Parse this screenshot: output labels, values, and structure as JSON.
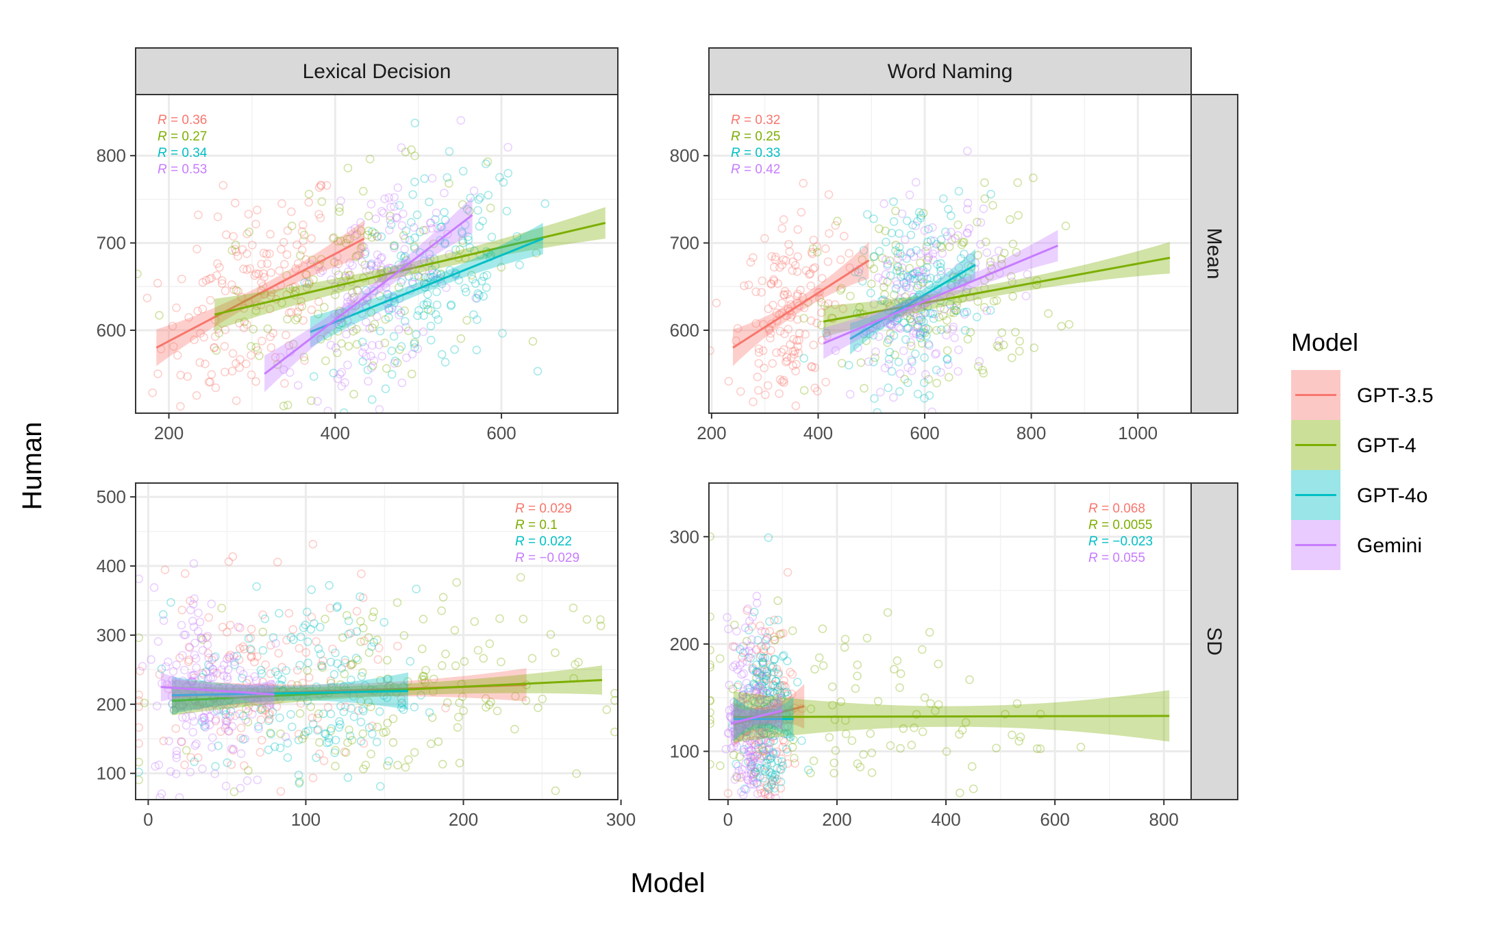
{
  "figure": {
    "xlabel": "Model",
    "ylabel": "Human",
    "legend": {
      "title": "Model",
      "placement": "right",
      "items": [
        {
          "label": "GPT-3.5",
          "color": "#F8766D"
        },
        {
          "label": "GPT-4",
          "color": "#7CAE00"
        },
        {
          "label": "GPT-4o",
          "color": "#00BFC4"
        },
        {
          "label": "Gemini",
          "color": "#C77CFF"
        }
      ]
    }
  },
  "chart_data": [
    {
      "type": "scatter",
      "task": "Lexical Decision",
      "measure": "Mean",
      "xlim": [
        160,
        740
      ],
      "ylim": [
        505,
        870
      ],
      "xticks": [
        "200",
        "400",
        "600"
      ],
      "xtick_values": [
        200,
        400,
        600
      ],
      "yticks": [
        "600",
        "700",
        "800"
      ],
      "ytick_values": [
        600,
        700,
        800
      ],
      "grid": true,
      "fit_lines": [
        {
          "model": "GPT-3.5",
          "x": [
            185,
            435
          ],
          "y": [
            580,
            705
          ],
          "ci": 14
        },
        {
          "model": "GPT-4",
          "x": [
            255,
            725
          ],
          "y": [
            618,
            723
          ],
          "ci": 12
        },
        {
          "model": "GPT-4o",
          "x": [
            370,
            650
          ],
          "y": [
            598,
            705
          ],
          "ci": 12
        },
        {
          "model": "Gemini",
          "x": [
            315,
            565
          ],
          "y": [
            550,
            732
          ],
          "ci": 14
        }
      ],
      "point_clouds": [
        {
          "model": "GPT-3.5",
          "x_center": 300,
          "x_sd": 55,
          "n": 160
        },
        {
          "model": "GPT-4",
          "x_center": 420,
          "x_sd": 80,
          "n": 150
        },
        {
          "model": "GPT-4o",
          "x_center": 520,
          "x_sd": 55,
          "n": 160
        },
        {
          "model": "Gemini",
          "x_center": 450,
          "x_sd": 50,
          "n": 160
        }
      ],
      "annotations": [
        {
          "label": "R",
          "value": " = 0.36",
          "model": "GPT-3.5"
        },
        {
          "label": "R",
          "value": " = 0.27",
          "model": "GPT-4"
        },
        {
          "label": "R",
          "value": " = 0.34",
          "model": "GPT-4o"
        },
        {
          "label": "R",
          "value": " = 0.53",
          "model": "Gemini"
        }
      ],
      "annotation_corner": "top-left"
    },
    {
      "type": "scatter",
      "task": "Word Naming",
      "measure": "Mean",
      "xlim": [
        195,
        1100
      ],
      "ylim": [
        505,
        870
      ],
      "xticks": [
        "200",
        "400",
        "600",
        "800",
        "1000"
      ],
      "xtick_values": [
        200,
        400,
        600,
        800,
        1000
      ],
      "yticks": [
        "600",
        "700",
        "800"
      ],
      "ytick_values": [
        600,
        700,
        800
      ],
      "grid": true,
      "fit_lines": [
        {
          "model": "GPT-3.5",
          "x": [
            240,
            495
          ],
          "y": [
            580,
            680
          ],
          "ci": 14
        },
        {
          "model": "GPT-4",
          "x": [
            410,
            1060
          ],
          "y": [
            610,
            683
          ],
          "ci": 12
        },
        {
          "model": "GPT-4o",
          "x": [
            460,
            695
          ],
          "y": [
            590,
            675
          ],
          "ci": 12
        },
        {
          "model": "Gemini",
          "x": [
            410,
            850
          ],
          "y": [
            585,
            697
          ],
          "ci": 12
        }
      ],
      "point_clouds": [
        {
          "model": "GPT-3.5",
          "x_center": 340,
          "x_sd": 50,
          "n": 160
        },
        {
          "model": "GPT-4",
          "x_center": 620,
          "x_sd": 110,
          "n": 150
        },
        {
          "model": "GPT-4o",
          "x_center": 580,
          "x_sd": 55,
          "n": 160
        },
        {
          "model": "Gemini",
          "x_center": 600,
          "x_sd": 70,
          "n": 150
        }
      ],
      "annotations": [
        {
          "label": "R",
          "value": " = 0.32",
          "model": "GPT-3.5"
        },
        {
          "label": "R",
          "value": " = 0.25",
          "model": "GPT-4"
        },
        {
          "label": "R",
          "value": " = 0.33",
          "model": "GPT-4o"
        },
        {
          "label": "R",
          "value": " = 0.42",
          "model": "Gemini"
        }
      ],
      "annotation_corner": "top-left"
    },
    {
      "type": "scatter",
      "task": "Lexical Decision",
      "measure": "SD",
      "xlim": [
        -8,
        298
      ],
      "ylim": [
        62,
        520
      ],
      "xticks": [
        "0",
        "100",
        "200",
        "300"
      ],
      "xtick_values": [
        0,
        100,
        200,
        300
      ],
      "yticks": [
        "100",
        "200",
        "300",
        "400",
        "500"
      ],
      "ytick_values": [
        100,
        200,
        300,
        400,
        500
      ],
      "grid": true,
      "fit_lines": [
        {
          "model": "GPT-3.5",
          "x": [
            15,
            240
          ],
          "y": [
            212,
            228
          ],
          "ci": 16
        },
        {
          "model": "GPT-4",
          "x": [
            15,
            288
          ],
          "y": [
            205,
            235
          ],
          "ci": 14
        },
        {
          "model": "GPT-4o",
          "x": [
            15,
            165
          ],
          "y": [
            213,
            219
          ],
          "ci": 18
        },
        {
          "model": "Gemini",
          "x": [
            8,
            80
          ],
          "y": [
            225,
            214
          ],
          "ci": 14
        }
      ],
      "point_clouds": [
        {
          "model": "GPT-3.5",
          "x_center": 70,
          "x_sd": 40,
          "n": 150
        },
        {
          "model": "GPT-4",
          "x_center": 150,
          "x_sd": 65,
          "n": 150
        },
        {
          "model": "GPT-4o",
          "x_center": 100,
          "x_sd": 35,
          "n": 160
        },
        {
          "model": "Gemini",
          "x_center": 38,
          "x_sd": 18,
          "n": 170
        }
      ],
      "annotations": [
        {
          "label": "R",
          "value": " = 0.029",
          "model": "GPT-3.5"
        },
        {
          "label": "R",
          "value": " = 0.1",
          "model": "GPT-4"
        },
        {
          "label": "R",
          "value": " = 0.022",
          "model": "GPT-4o"
        },
        {
          "label": "R",
          "value": " = −0.029",
          "model": "Gemini"
        }
      ],
      "annotation_corner": "top-right"
    },
    {
      "type": "scatter",
      "task": "Word Naming",
      "measure": "SD",
      "xlim": [
        -35,
        850
      ],
      "ylim": [
        55,
        350
      ],
      "xticks": [
        "0",
        "200",
        "400",
        "600",
        "800"
      ],
      "xtick_values": [
        0,
        200,
        400,
        600,
        800
      ],
      "yticks": [
        "100",
        "200",
        "300"
      ],
      "ytick_values": [
        100,
        200,
        300
      ],
      "grid": true,
      "fit_lines": [
        {
          "model": "GPT-3.5",
          "x": [
            10,
            140
          ],
          "y": [
            125,
            142
          ],
          "ci": 14
        },
        {
          "model": "GPT-4",
          "x": [
            10,
            810
          ],
          "y": [
            132,
            133
          ],
          "ci": 16
        },
        {
          "model": "GPT-4o",
          "x": [
            10,
            120
          ],
          "y": [
            130,
            130
          ],
          "ci": 14
        },
        {
          "model": "Gemini",
          "x": [
            5,
            100
          ],
          "y": [
            126,
            138
          ],
          "ci": 12
        }
      ],
      "point_clouds": [
        {
          "model": "GPT-3.5",
          "x_center": 70,
          "x_sd": 25,
          "n": 150
        },
        {
          "model": "GPT-4",
          "x_center": 200,
          "x_sd": 180,
          "n": 110
        },
        {
          "model": "GPT-4o",
          "x_center": 65,
          "x_sd": 25,
          "n": 170
        },
        {
          "model": "Gemini",
          "x_center": 40,
          "x_sd": 20,
          "n": 170
        }
      ],
      "annotations": [
        {
          "label": "R",
          "value": " = 0.068",
          "model": "GPT-3.5"
        },
        {
          "label": "R",
          "value": " = 0.0055",
          "model": "GPT-4"
        },
        {
          "label": "R",
          "value": " = −0.023",
          "model": "GPT-4o"
        },
        {
          "label": "R",
          "value": " = 0.055",
          "model": "Gemini"
        }
      ],
      "annotation_corner": "top-right"
    }
  ]
}
